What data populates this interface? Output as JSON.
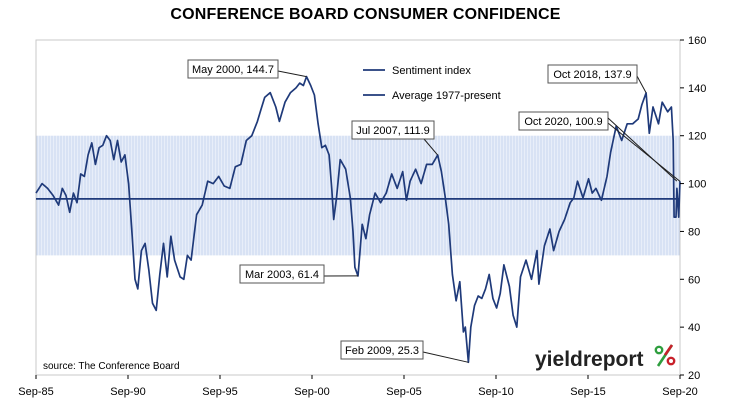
{
  "chart_data": {
    "type": "line",
    "title": "CONFERENCE BOARD CONSUMER CONFIDENCE",
    "source": "source: The Conference Board",
    "brand": {
      "text": "yieldreport",
      "symbol": "%",
      "color": "#222222",
      "symbol_colors": [
        "#2e9e3e",
        "#c8202a"
      ]
    },
    "x_tick_labels": [
      "Sep-85",
      "Sep-90",
      "Sep-95",
      "Sep-00",
      "Sep-05",
      "Sep-10",
      "Sep-15",
      "Sep-20"
    ],
    "x_range": [
      1985.67,
      2020.67
    ],
    "y_ticks": [
      20,
      40,
      60,
      80,
      100,
      120,
      140,
      160
    ],
    "ylim": [
      20,
      160
    ],
    "grid": false,
    "legend_position": "top-center",
    "band": {
      "low": 70,
      "high": 120,
      "color": "#c9d7ef"
    },
    "colors": {
      "line": "#1f3a7a",
      "axis": "#000000"
    },
    "series": [
      {
        "name": "Sentiment index",
        "points": [
          [
            1985.67,
            96
          ],
          [
            1986.0,
            100
          ],
          [
            1986.3,
            98
          ],
          [
            1986.6,
            95
          ],
          [
            1986.9,
            91
          ],
          [
            1987.1,
            98
          ],
          [
            1987.3,
            95
          ],
          [
            1987.5,
            88
          ],
          [
            1987.7,
            96
          ],
          [
            1987.9,
            92
          ],
          [
            1988.1,
            104
          ],
          [
            1988.3,
            103
          ],
          [
            1988.5,
            112
          ],
          [
            1988.7,
            117
          ],
          [
            1988.9,
            108
          ],
          [
            1989.1,
            115
          ],
          [
            1989.3,
            116
          ],
          [
            1989.5,
            120
          ],
          [
            1989.7,
            118
          ],
          [
            1989.9,
            110
          ],
          [
            1990.1,
            118
          ],
          [
            1990.3,
            109
          ],
          [
            1990.5,
            112
          ],
          [
            1990.7,
            100
          ],
          [
            1990.9,
            78
          ],
          [
            1991.05,
            60
          ],
          [
            1991.2,
            56
          ],
          [
            1991.4,
            72
          ],
          [
            1991.6,
            75
          ],
          [
            1991.8,
            64
          ],
          [
            1992.0,
            50
          ],
          [
            1992.2,
            47
          ],
          [
            1992.4,
            62
          ],
          [
            1992.6,
            75
          ],
          [
            1992.8,
            61
          ],
          [
            1993.0,
            78
          ],
          [
            1993.2,
            68
          ],
          [
            1993.5,
            61
          ],
          [
            1993.7,
            60
          ],
          [
            1993.9,
            70
          ],
          [
            1994.1,
            68
          ],
          [
            1994.4,
            87
          ],
          [
            1994.7,
            91
          ],
          [
            1995.0,
            101
          ],
          [
            1995.3,
            100
          ],
          [
            1995.6,
            103
          ],
          [
            1995.9,
            99
          ],
          [
            1996.2,
            98
          ],
          [
            1996.5,
            107
          ],
          [
            1996.8,
            108
          ],
          [
            1997.1,
            118
          ],
          [
            1997.4,
            120
          ],
          [
            1997.7,
            126
          ],
          [
            1997.9,
            131
          ],
          [
            1998.1,
            136
          ],
          [
            1998.4,
            138
          ],
          [
            1998.7,
            132
          ],
          [
            1998.9,
            126
          ],
          [
            1999.2,
            134
          ],
          [
            1999.5,
            138
          ],
          [
            1999.8,
            140
          ],
          [
            2000.0,
            142
          ],
          [
            2000.2,
            141
          ],
          [
            2000.37,
            144.7
          ],
          [
            2000.6,
            141
          ],
          [
            2000.8,
            137
          ],
          [
            2001.0,
            125
          ],
          [
            2001.2,
            115
          ],
          [
            2001.4,
            116
          ],
          [
            2001.6,
            112
          ],
          [
            2001.75,
            97
          ],
          [
            2001.85,
            85
          ],
          [
            2002.0,
            94
          ],
          [
            2002.2,
            110
          ],
          [
            2002.5,
            106
          ],
          [
            2002.75,
            94
          ],
          [
            2002.9,
            80
          ],
          [
            2003.0,
            65
          ],
          [
            2003.17,
            61.4
          ],
          [
            2003.4,
            83
          ],
          [
            2003.6,
            77
          ],
          [
            2003.8,
            87
          ],
          [
            2004.1,
            96
          ],
          [
            2004.4,
            92
          ],
          [
            2004.7,
            96
          ],
          [
            2005.0,
            104
          ],
          [
            2005.3,
            98
          ],
          [
            2005.6,
            105
          ],
          [
            2005.8,
            93
          ],
          [
            2006.0,
            101
          ],
          [
            2006.3,
            106
          ],
          [
            2006.6,
            100
          ],
          [
            2006.9,
            108
          ],
          [
            2007.2,
            108
          ],
          [
            2007.5,
            111.9
          ],
          [
            2007.7,
            105
          ],
          [
            2007.9,
            95
          ],
          [
            2008.1,
            83
          ],
          [
            2008.3,
            62
          ],
          [
            2008.5,
            51
          ],
          [
            2008.7,
            59
          ],
          [
            2008.9,
            38
          ],
          [
            2009.0,
            40
          ],
          [
            2009.17,
            25.3
          ],
          [
            2009.3,
            40
          ],
          [
            2009.5,
            49
          ],
          [
            2009.7,
            53
          ],
          [
            2009.9,
            52
          ],
          [
            2010.1,
            56
          ],
          [
            2010.3,
            62
          ],
          [
            2010.5,
            52
          ],
          [
            2010.7,
            48
          ],
          [
            2010.9,
            54
          ],
          [
            2011.1,
            66
          ],
          [
            2011.4,
            57
          ],
          [
            2011.6,
            45
          ],
          [
            2011.8,
            40
          ],
          [
            2012.0,
            61
          ],
          [
            2012.3,
            68
          ],
          [
            2012.6,
            60
          ],
          [
            2012.9,
            72
          ],
          [
            2013.0,
            58
          ],
          [
            2013.3,
            74
          ],
          [
            2013.6,
            81
          ],
          [
            2013.8,
            72
          ],
          [
            2014.1,
            80
          ],
          [
            2014.4,
            85
          ],
          [
            2014.7,
            92
          ],
          [
            2014.9,
            94
          ],
          [
            2015.1,
            101
          ],
          [
            2015.4,
            94
          ],
          [
            2015.7,
            102
          ],
          [
            2015.9,
            96
          ],
          [
            2016.1,
            98
          ],
          [
            2016.4,
            93
          ],
          [
            2016.7,
            103
          ],
          [
            2016.9,
            113
          ],
          [
            2017.2,
            124
          ],
          [
            2017.5,
            118
          ],
          [
            2017.8,
            125
          ],
          [
            2018.1,
            125
          ],
          [
            2018.4,
            127
          ],
          [
            2018.6,
            133
          ],
          [
            2018.83,
            137.9
          ],
          [
            2019.0,
            121
          ],
          [
            2019.2,
            132
          ],
          [
            2019.5,
            125
          ],
          [
            2019.7,
            134
          ],
          [
            2020.0,
            130
          ],
          [
            2020.2,
            132
          ],
          [
            2020.3,
            118
          ],
          [
            2020.35,
            86
          ],
          [
            2020.45,
            86
          ],
          [
            2020.5,
            98
          ],
          [
            2020.55,
            92
          ],
          [
            2020.6,
            86
          ],
          [
            2020.67,
            100.9
          ]
        ]
      },
      {
        "name": "Average 1977-present",
        "value": 93.6
      }
    ],
    "annotations": [
      {
        "label": "May 2000, 144.7",
        "x": 2000.37,
        "y": 144.7
      },
      {
        "label": "Mar 2003, 61.4",
        "x": 2003.17,
        "y": 61.4
      },
      {
        "label": "Jul 2007, 111.9",
        "x": 2007.5,
        "y": 111.9
      },
      {
        "label": "Feb 2009, 25.3",
        "x": 2009.17,
        "y": 25.3
      },
      {
        "label": "Oct 2018, 137.9",
        "x": 2018.83,
        "y": 137.9
      },
      {
        "label": "Oct 2020, 100.9",
        "x": 2020.67,
        "y": 100.9
      }
    ]
  }
}
